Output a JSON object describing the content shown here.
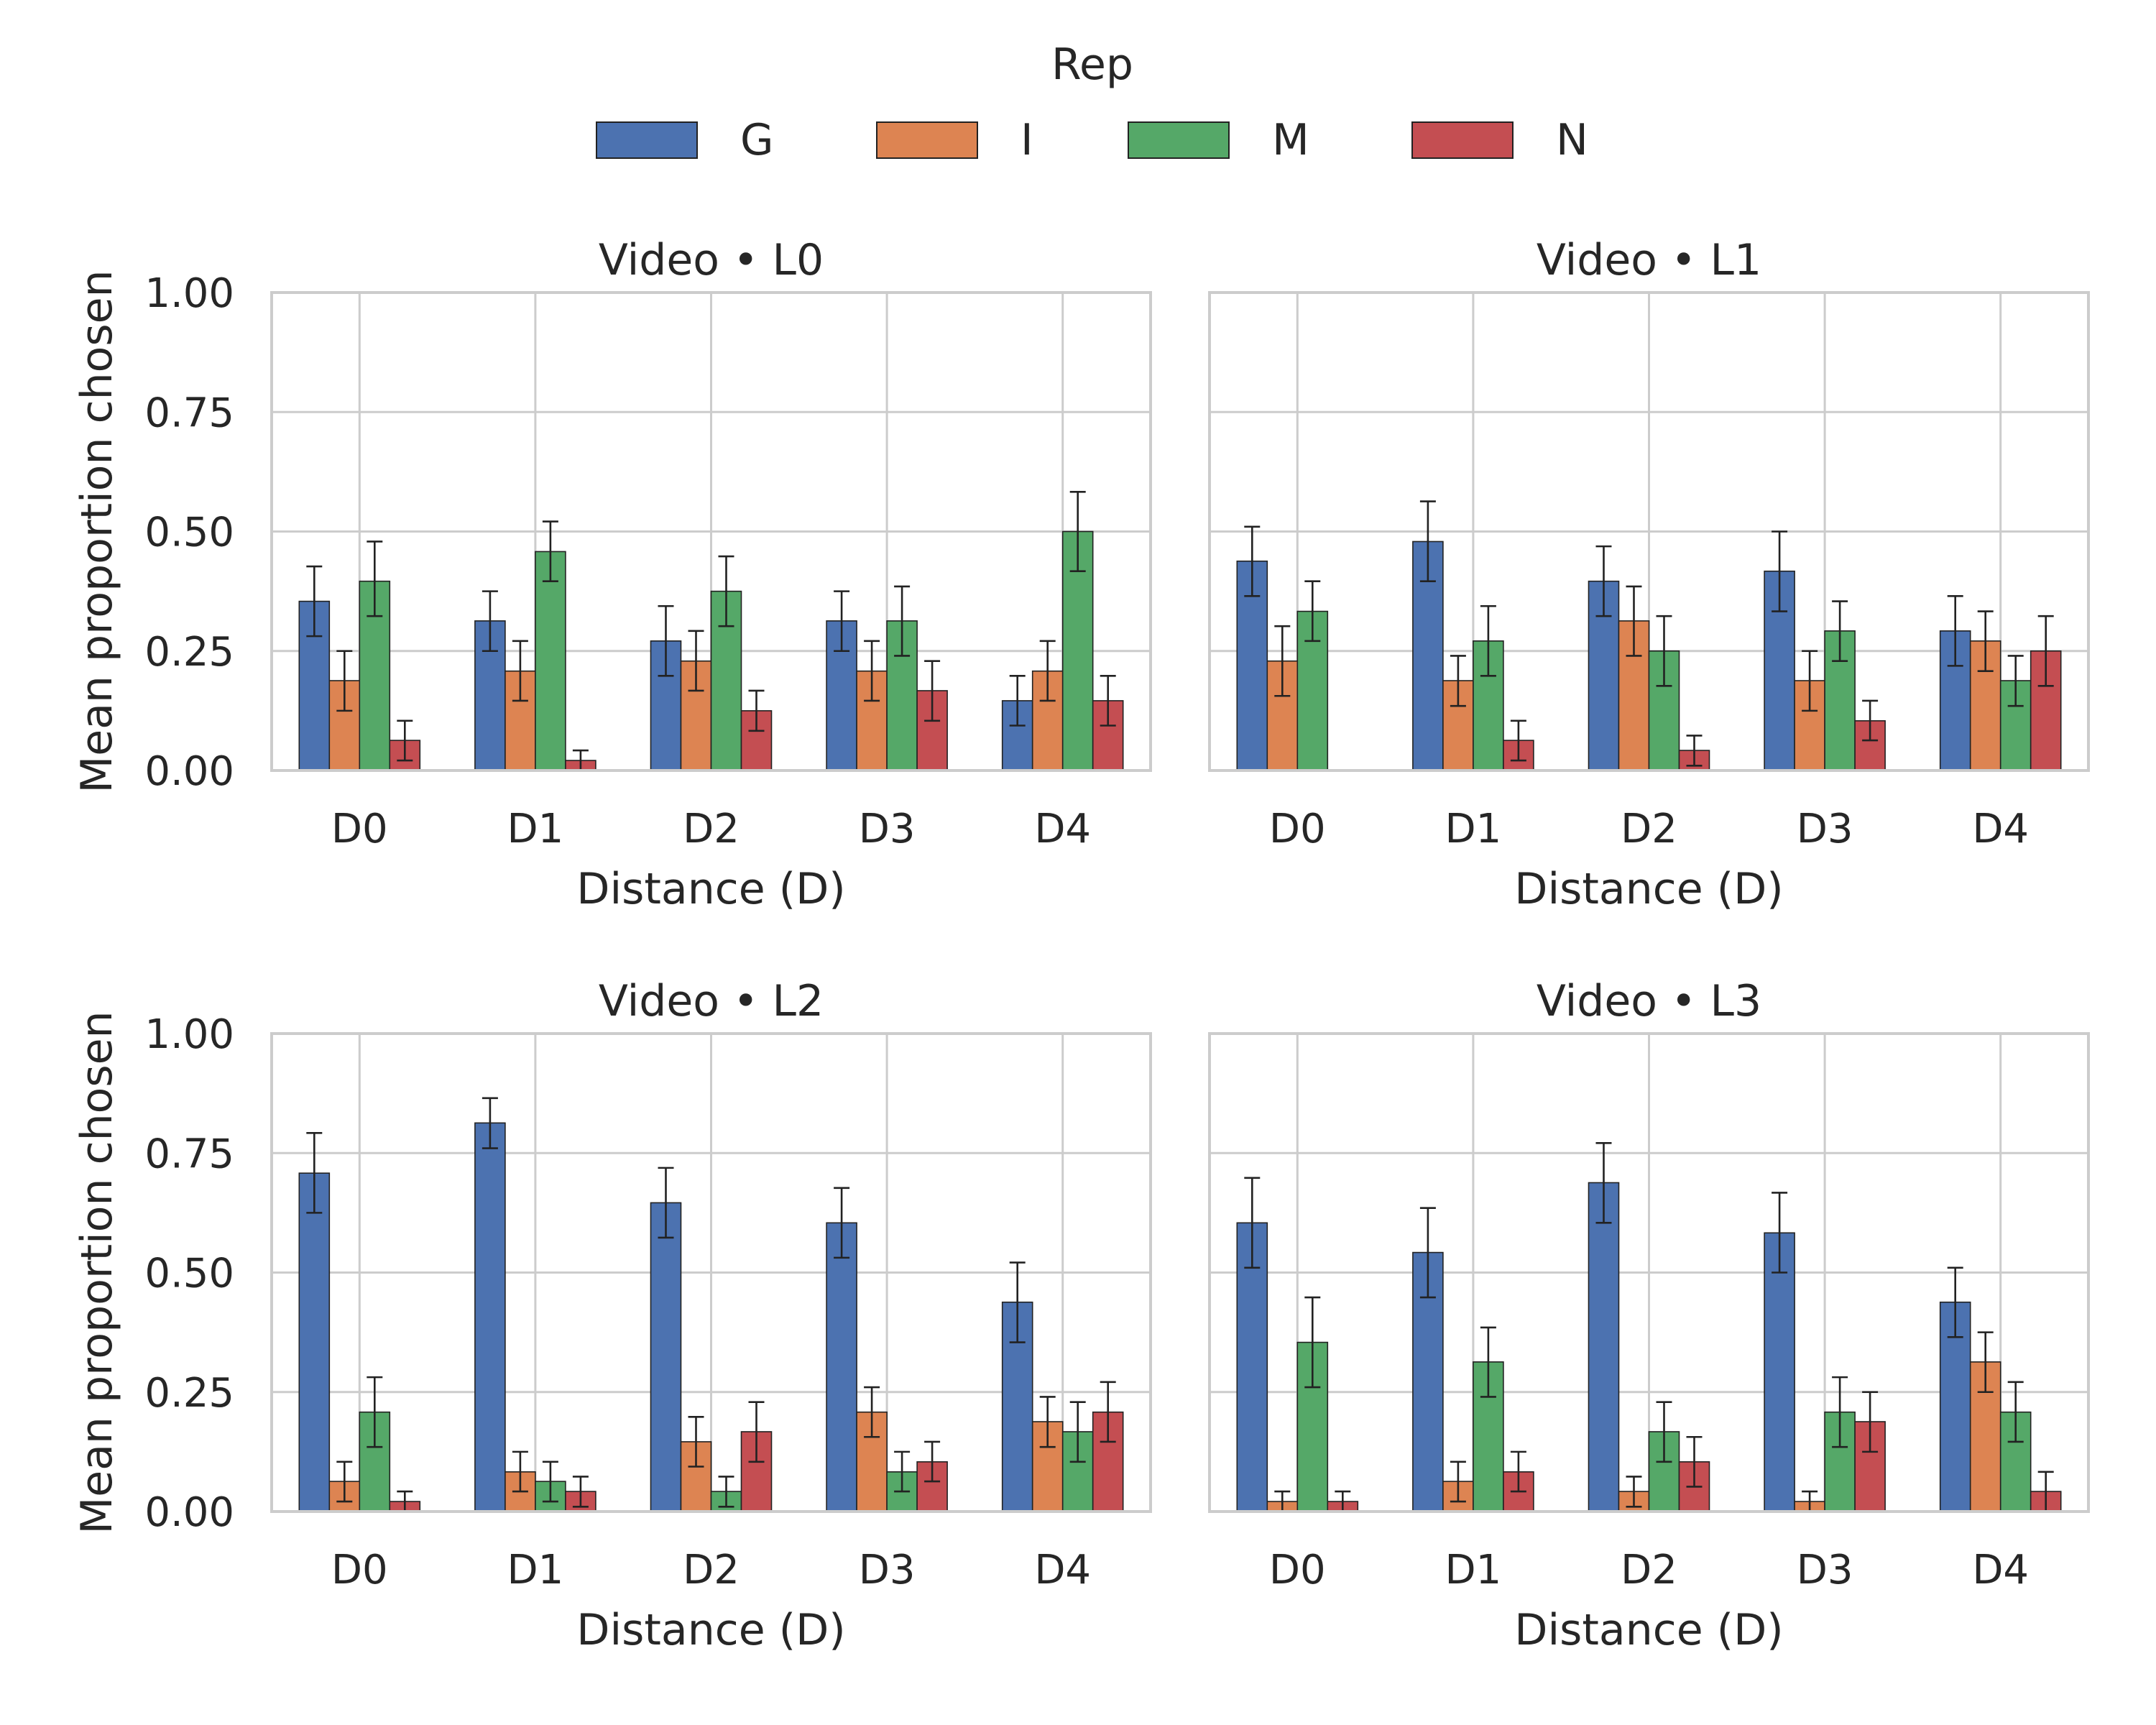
{
  "chart_data": {
    "type": "bar",
    "legend": {
      "title": "Rep",
      "position": "top-center",
      "entries": [
        {
          "name": "G",
          "color": "#4c72b0"
        },
        {
          "name": "I",
          "color": "#dd8452"
        },
        {
          "name": "M",
          "color": "#55a868"
        },
        {
          "name": "N",
          "color": "#c44e52"
        }
      ]
    },
    "categories": [
      "D0",
      "D1",
      "D2",
      "D3",
      "D4"
    ],
    "xlabel": "Distance (D)",
    "ylabel": "Mean proportion chosen",
    "ylim": [
      0,
      1
    ],
    "yticks": [
      "0.00",
      "0.25",
      "0.50",
      "0.75",
      "1.00"
    ],
    "grid": true,
    "panels": [
      {
        "title": "Video • L0",
        "series": [
          {
            "name": "G",
            "values": [
              0.354,
              0.313,
              0.271,
              0.313,
              0.146
            ],
            "err": [
              [
                0.281,
                0.427
              ],
              [
                0.25,
                0.375
              ],
              [
                0.198,
                0.344
              ],
              [
                0.25,
                0.375
              ],
              [
                0.094,
                0.198
              ]
            ]
          },
          {
            "name": "I",
            "values": [
              0.188,
              0.208,
              0.229,
              0.208,
              0.208
            ],
            "err": [
              [
                0.125,
                0.25
              ],
              [
                0.146,
                0.271
              ],
              [
                0.167,
                0.292
              ],
              [
                0.146,
                0.271
              ],
              [
                0.146,
                0.271
              ]
            ]
          },
          {
            "name": "M",
            "values": [
              0.396,
              0.458,
              0.375,
              0.313,
              0.5
            ],
            "err": [
              [
                0.323,
                0.479
              ],
              [
                0.396,
                0.521
              ],
              [
                0.302,
                0.448
              ],
              [
                0.24,
                0.385
              ],
              [
                0.417,
                0.583
              ]
            ]
          },
          {
            "name": "N",
            "values": [
              0.063,
              0.021,
              0.125,
              0.167,
              0.146
            ],
            "err": [
              [
                0.021,
                0.104
              ],
              [
                0.0,
                0.042
              ],
              [
                0.083,
                0.167
              ],
              [
                0.104,
                0.229
              ],
              [
                0.094,
                0.198
              ]
            ]
          }
        ]
      },
      {
        "title": "Video • L1",
        "series": [
          {
            "name": "G",
            "values": [
              0.438,
              0.479,
              0.396,
              0.417,
              0.292
            ],
            "err": [
              [
                0.365,
                0.51
              ],
              [
                0.396,
                0.563
              ],
              [
                0.323,
                0.469
              ],
              [
                0.333,
                0.5
              ],
              [
                0.219,
                0.365
              ]
            ]
          },
          {
            "name": "I",
            "values": [
              0.229,
              0.188,
              0.313,
              0.188,
              0.271
            ],
            "err": [
              [
                0.156,
                0.302
              ],
              [
                0.135,
                0.24
              ],
              [
                0.24,
                0.385
              ],
              [
                0.125,
                0.25
              ],
              [
                0.208,
                0.333
              ]
            ]
          },
          {
            "name": "M",
            "values": [
              0.333,
              0.271,
              0.25,
              0.292,
              0.188
            ],
            "err": [
              [
                0.271,
                0.396
              ],
              [
                0.198,
                0.344
              ],
              [
                0.177,
                0.323
              ],
              [
                0.229,
                0.354
              ],
              [
                0.135,
                0.24
              ]
            ]
          },
          {
            "name": "N",
            "values": [
              0.0,
              0.063,
              0.042,
              0.104,
              0.25
            ],
            "err": [
              [
                0.0,
                0.0
              ],
              [
                0.021,
                0.104
              ],
              [
                0.01,
                0.073
              ],
              [
                0.063,
                0.146
              ],
              [
                0.177,
                0.323
              ]
            ]
          }
        ]
      },
      {
        "title": "Video • L2",
        "series": [
          {
            "name": "G",
            "values": [
              0.708,
              0.813,
              0.646,
              0.604,
              0.438
            ],
            "err": [
              [
                0.625,
                0.792
              ],
              [
                0.76,
                0.865
              ],
              [
                0.573,
                0.719
              ],
              [
                0.531,
                0.677
              ],
              [
                0.354,
                0.521
              ]
            ]
          },
          {
            "name": "I",
            "values": [
              0.063,
              0.083,
              0.146,
              0.208,
              0.188
            ],
            "err": [
              [
                0.021,
                0.104
              ],
              [
                0.042,
                0.125
              ],
              [
                0.094,
                0.198
              ],
              [
                0.156,
                0.26
              ],
              [
                0.135,
                0.24
              ]
            ]
          },
          {
            "name": "M",
            "values": [
              0.208,
              0.063,
              0.042,
              0.083,
              0.167
            ],
            "err": [
              [
                0.135,
                0.281
              ],
              [
                0.021,
                0.104
              ],
              [
                0.01,
                0.073
              ],
              [
                0.042,
                0.125
              ],
              [
                0.104,
                0.229
              ]
            ]
          },
          {
            "name": "N",
            "values": [
              0.021,
              0.042,
              0.167,
              0.104,
              0.208
            ],
            "err": [
              [
                0.0,
                0.042
              ],
              [
                0.01,
                0.073
              ],
              [
                0.104,
                0.229
              ],
              [
                0.063,
                0.146
              ],
              [
                0.146,
                0.271
              ]
            ]
          }
        ]
      },
      {
        "title": "Video • L3",
        "series": [
          {
            "name": "G",
            "values": [
              0.604,
              0.542,
              0.688,
              0.583,
              0.438
            ],
            "err": [
              [
                0.51,
                0.698
              ],
              [
                0.448,
                0.635
              ],
              [
                0.604,
                0.771
              ],
              [
                0.5,
                0.667
              ],
              [
                0.365,
                0.51
              ]
            ]
          },
          {
            "name": "I",
            "values": [
              0.021,
              0.063,
              0.042,
              0.021,
              0.313
            ],
            "err": [
              [
                0.0,
                0.042
              ],
              [
                0.021,
                0.104
              ],
              [
                0.01,
                0.073
              ],
              [
                0.0,
                0.042
              ],
              [
                0.25,
                0.375
              ]
            ]
          },
          {
            "name": "M",
            "values": [
              0.354,
              0.313,
              0.167,
              0.208,
              0.208
            ],
            "err": [
              [
                0.26,
                0.448
              ],
              [
                0.24,
                0.385
              ],
              [
                0.104,
                0.229
              ],
              [
                0.135,
                0.281
              ],
              [
                0.146,
                0.271
              ]
            ]
          },
          {
            "name": "N",
            "values": [
              0.021,
              0.083,
              0.104,
              0.188,
              0.042
            ],
            "err": [
              [
                0.0,
                0.042
              ],
              [
                0.042,
                0.125
              ],
              [
                0.052,
                0.156
              ],
              [
                0.125,
                0.25
              ],
              [
                0.0,
                0.083
              ]
            ]
          }
        ]
      }
    ]
  }
}
